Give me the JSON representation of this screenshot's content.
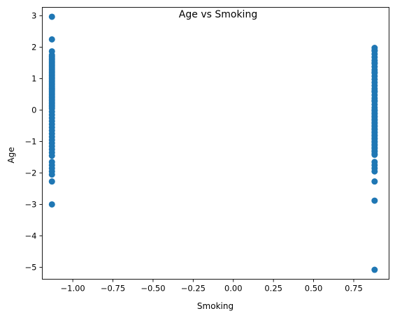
{
  "chart_data": {
    "type": "scatter",
    "title": "Age vs Smoking",
    "xlabel": "Smoking",
    "ylabel": "Age",
    "xlim": [
      -1.19,
      0.97
    ],
    "ylim": [
      -5.38,
      3.27
    ],
    "x_ticks": [
      -1.0,
      -0.75,
      -0.5,
      -0.25,
      0.0,
      0.25,
      0.5,
      0.75
    ],
    "x_tick_labels": [
      "−1.00",
      "−0.75",
      "−0.50",
      "−0.25",
      "0.00",
      "0.25",
      "0.50",
      "0.75"
    ],
    "y_ticks": [
      -5,
      -4,
      -3,
      -2,
      -1,
      0,
      1,
      2,
      3
    ],
    "y_tick_labels": [
      "−5",
      "−4",
      "−3",
      "−2",
      "−1",
      "0",
      "1",
      "2",
      "3"
    ],
    "grid": false,
    "marker_color": "#1f77b4",
    "series": [
      {
        "x": [
          -1.13,
          -1.13,
          -1.13,
          -1.13,
          -1.13,
          -1.13,
          -1.13,
          -1.13,
          -1.13,
          -1.13,
          -1.13,
          -1.13,
          -1.13,
          -1.13,
          -1.13,
          -1.13,
          -1.13,
          -1.13,
          -1.13,
          -1.13,
          -1.13,
          -1.13,
          -1.13,
          -1.13,
          -1.13,
          -1.13,
          -1.13,
          -1.13,
          -1.13,
          -1.13,
          -1.13,
          -1.13,
          -1.13,
          -1.13,
          -1.13,
          -1.13,
          -1.13,
          -1.13,
          -1.13,
          -1.13,
          -1.13,
          -1.13,
          -1.13,
          -1.13,
          -1.13,
          -1.13,
          -1.13,
          -1.13,
          -1.13,
          -1.13,
          -1.13,
          -1.13,
          -1.13,
          -1.13,
          -1.13,
          -1.13,
          -1.13,
          -1.13,
          -1.13,
          -1.13,
          0.88,
          0.88,
          0.88,
          0.88,
          0.88,
          0.88,
          0.88,
          0.88,
          0.88,
          0.88,
          0.88,
          0.88,
          0.88,
          0.88,
          0.88,
          0.88,
          0.88,
          0.88,
          0.88,
          0.88,
          0.88,
          0.88,
          0.88,
          0.88,
          0.88,
          0.88,
          0.88,
          0.88,
          0.88,
          0.88,
          0.88,
          0.88,
          0.88,
          0.88,
          0.88,
          0.88,
          0.88,
          0.88,
          0.88,
          0.88,
          0.88,
          0.88,
          0.88,
          0.88,
          0.88,
          0.88,
          0.88,
          0.88,
          0.88,
          0.88,
          0.88,
          0.88,
          0.88,
          0.88,
          0.88,
          0.88,
          0.88,
          0.88,
          0.88,
          0.88,
          0.88,
          0.88
        ],
        "y": [
          2.97,
          2.25,
          1.87,
          1.75,
          1.65,
          1.55,
          1.45,
          1.35,
          1.25,
          1.15,
          1.05,
          0.95,
          0.85,
          0.75,
          0.65,
          0.55,
          0.45,
          0.35,
          0.25,
          0.15,
          0.05,
          -0.05,
          -0.15,
          -0.25,
          -0.35,
          -0.45,
          -0.55,
          -0.65,
          -0.75,
          -0.85,
          -0.95,
          -1.05,
          -1.15,
          -1.25,
          -1.35,
          -1.45,
          -1.65,
          -1.75,
          -1.85,
          -1.95,
          -2.05,
          -2.27,
          -3.0,
          1.7,
          1.6,
          1.5,
          1.4,
          1.3,
          1.2,
          1.1,
          1.0,
          0.9,
          0.8,
          0.7,
          0.6,
          0.5,
          0.4,
          0.3,
          0.2,
          0.1,
          1.98,
          1.88,
          1.78,
          1.68,
          1.58,
          1.48,
          1.38,
          1.28,
          1.18,
          1.08,
          0.98,
          0.88,
          0.78,
          0.68,
          0.58,
          0.48,
          0.38,
          0.28,
          0.18,
          0.08,
          -0.02,
          -0.12,
          -0.22,
          -0.32,
          -0.42,
          -0.52,
          -0.62,
          -0.72,
          -0.82,
          -0.92,
          -1.02,
          -1.12,
          -1.22,
          -1.32,
          -1.42,
          -1.65,
          -1.75,
          -1.85,
          -1.95,
          -2.27,
          -2.88,
          -5.08,
          0.0,
          -0.1,
          -0.2,
          -0.3,
          -0.4,
          -0.5,
          -0.6,
          -0.7,
          -0.8,
          -0.9,
          -1.0,
          -1.1,
          -1.2,
          -1.3,
          -1.4,
          1.9,
          1.5,
          0.6,
          0.3,
          1.2
        ]
      }
    ]
  }
}
